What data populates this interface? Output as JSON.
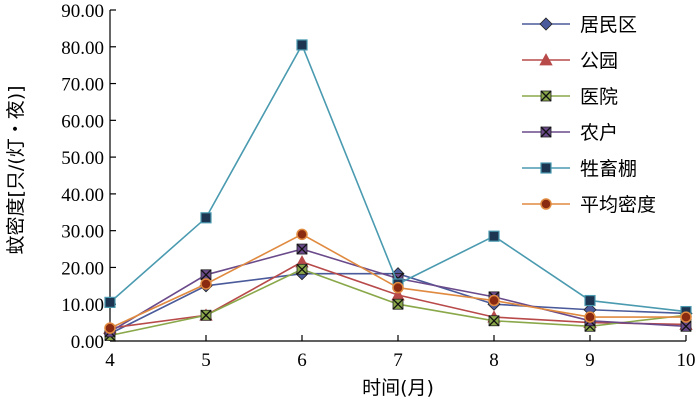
{
  "chart_data": {
    "type": "line",
    "title": "",
    "xlabel": "时间(月)",
    "ylabel": "蚊密度[只/(灯・夜)]",
    "x": [
      4,
      5,
      6,
      7,
      8,
      9,
      10
    ],
    "xlim": [
      4,
      10
    ],
    "ylim": [
      0,
      90
    ],
    "yticks": [
      "0.00",
      "10.00",
      "20.00",
      "30.00",
      "40.00",
      "50.00",
      "60.00",
      "70.00",
      "80.00",
      "90.00"
    ],
    "xticks": [
      "4",
      "5",
      "6",
      "7",
      "8",
      "9",
      "10"
    ],
    "grid": false,
    "legend_position": "top-right",
    "series": [
      {
        "name": "居民区",
        "marker": "diamond",
        "color": "#4a5a9a",
        "values": [
          2.0,
          15.0,
          18.3,
          18.3,
          10.0,
          8.5,
          7.5
        ]
      },
      {
        "name": "公园",
        "marker": "triangle",
        "color": "#b84a4a",
        "values": [
          3.5,
          7.0,
          21.5,
          12.5,
          6.5,
          5.0,
          4.5
        ]
      },
      {
        "name": "医院",
        "marker": "x-square",
        "color": "#8aa84a",
        "values": [
          1.5,
          7.0,
          19.5,
          10.0,
          5.5,
          4.0,
          7.0
        ]
      },
      {
        "name": "农户",
        "marker": "x-square",
        "color": "#6a4a8a",
        "values": [
          2.5,
          18.0,
          25.0,
          17.0,
          12.0,
          5.5,
          4.0
        ]
      },
      {
        "name": "牲畜棚",
        "marker": "square",
        "color": "#4a9ab0",
        "values": [
          10.5,
          33.5,
          80.5,
          15.5,
          28.5,
          11.0,
          8.0
        ]
      },
      {
        "name": "平均密度",
        "marker": "circle",
        "color": "#e08a40",
        "values": [
          3.5,
          15.5,
          29.0,
          14.5,
          11.0,
          6.5,
          6.5
        ]
      }
    ]
  }
}
